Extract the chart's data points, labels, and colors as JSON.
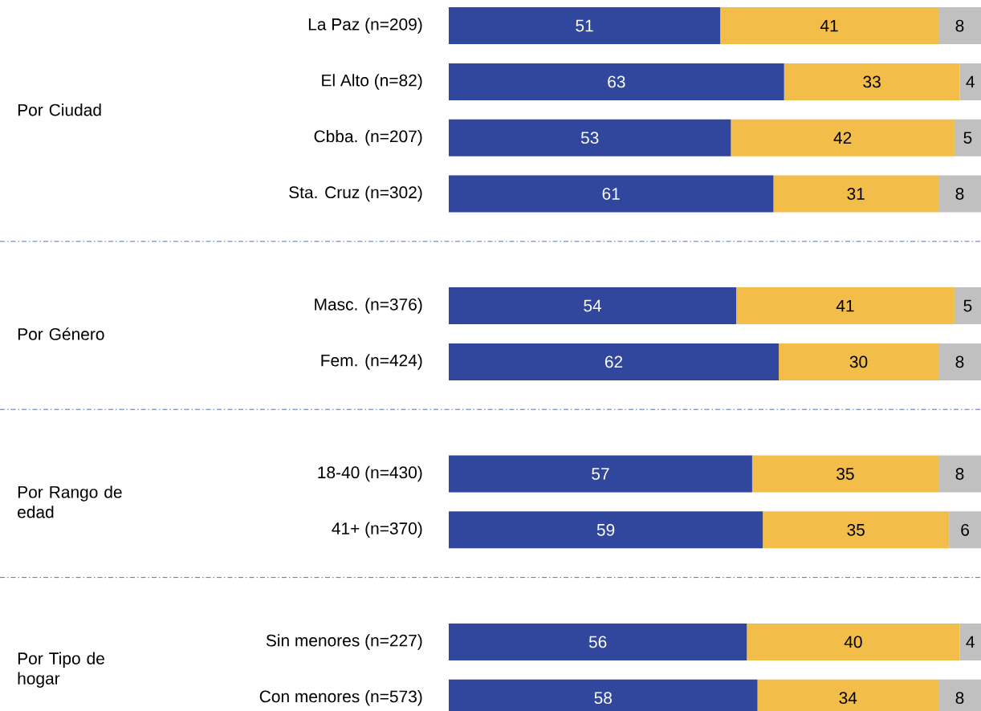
{
  "chart_data": {
    "type": "bar",
    "orientation": "horizontal",
    "stacked": true,
    "data_labels": true,
    "categories": [
      "La Paz (n=209)",
      "El Alto (n=82)",
      "Cbba.  (n=207)",
      "Sta. Cruz  (n=302)",
      null,
      "Masc.  (n=376)",
      "Fem.  (n=424)",
      null,
      "18-40  (n=430)",
      "41+  (n=370)",
      null,
      "Sin menores  (n=227)",
      "Con menores (n=573)"
    ],
    "series": [
      {
        "color": "#31479e",
        "values": [
          51,
          63,
          53,
          61,
          null,
          54,
          62,
          null,
          57,
          59,
          null,
          56,
          58
        ]
      },
      {
        "color": "#f2bd48",
        "values": [
          41,
          33,
          42,
          31,
          null,
          41,
          30,
          null,
          35,
          35,
          null,
          40,
          34
        ]
      },
      {
        "color": "#c0c0c0",
        "values": [
          8,
          4,
          5,
          8,
          null,
          5,
          8,
          null,
          8,
          6,
          null,
          4,
          8
        ]
      }
    ],
    "annotations": [
      "Por Ciudad",
      "Por Género",
      "Por Rango de edad",
      "Por Tipo de hogar"
    ]
  }
}
